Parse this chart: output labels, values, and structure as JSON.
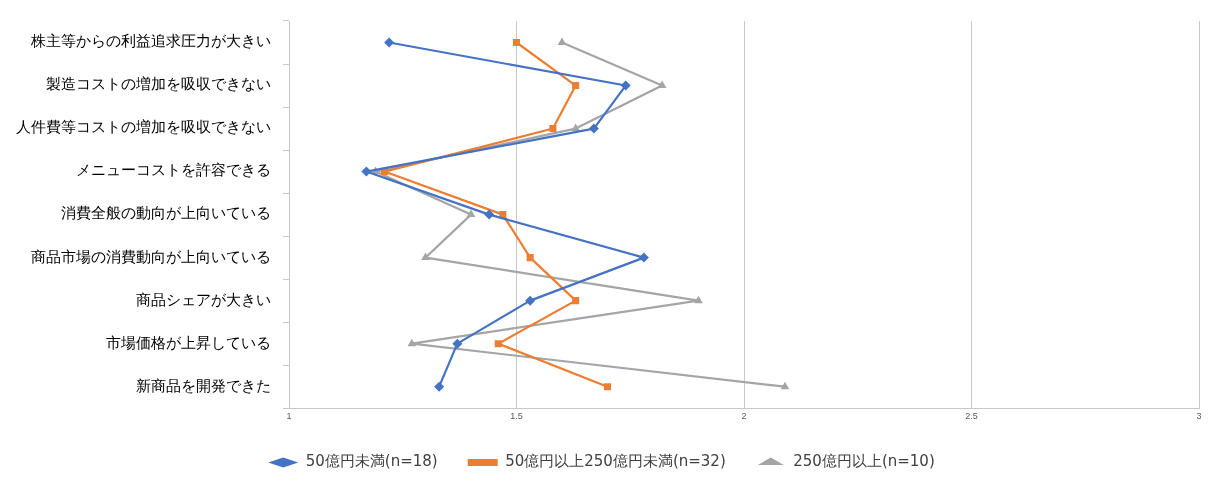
{
  "chart_data": {
    "type": "line",
    "orientation": "horizontal",
    "categories": [
      "株主等からの利益追求圧力が大きい",
      "製造コストの増加を吸収できない",
      "人件費等コストの増加を吸収できない",
      "メニューコストを許容できる",
      "消費全般の動向が上向いている",
      "商品市場の消費動向が上向いている",
      "商品シェアが大きい",
      "市場価格が上昇している",
      "新商品を開発できた"
    ],
    "series": [
      {
        "name": "50億円未満(n=18)",
        "color": "#4472c4",
        "marker": "diamond",
        "values": [
          1.22,
          1.74,
          1.67,
          1.17,
          1.44,
          1.78,
          1.53,
          1.37,
          1.33
        ]
      },
      {
        "name": "50億円以上250億円未満(n=32)",
        "color": "#ed7d31",
        "marker": "square",
        "values": [
          1.5,
          1.63,
          1.58,
          1.21,
          1.47,
          1.53,
          1.63,
          1.46,
          1.7
        ]
      },
      {
        "name": "250億円以上(n=10)",
        "color": "#a5a5a5",
        "marker": "triangle",
        "values": [
          1.6,
          1.82,
          1.63,
          1.19,
          1.4,
          1.3,
          1.9,
          1.27,
          2.09
        ]
      }
    ],
    "xlim": [
      1,
      3
    ],
    "xticks": [
      1,
      1.5,
      2,
      2.5,
      3
    ],
    "grid": "x",
    "legend": "bottom",
    "line_style": "solid"
  }
}
